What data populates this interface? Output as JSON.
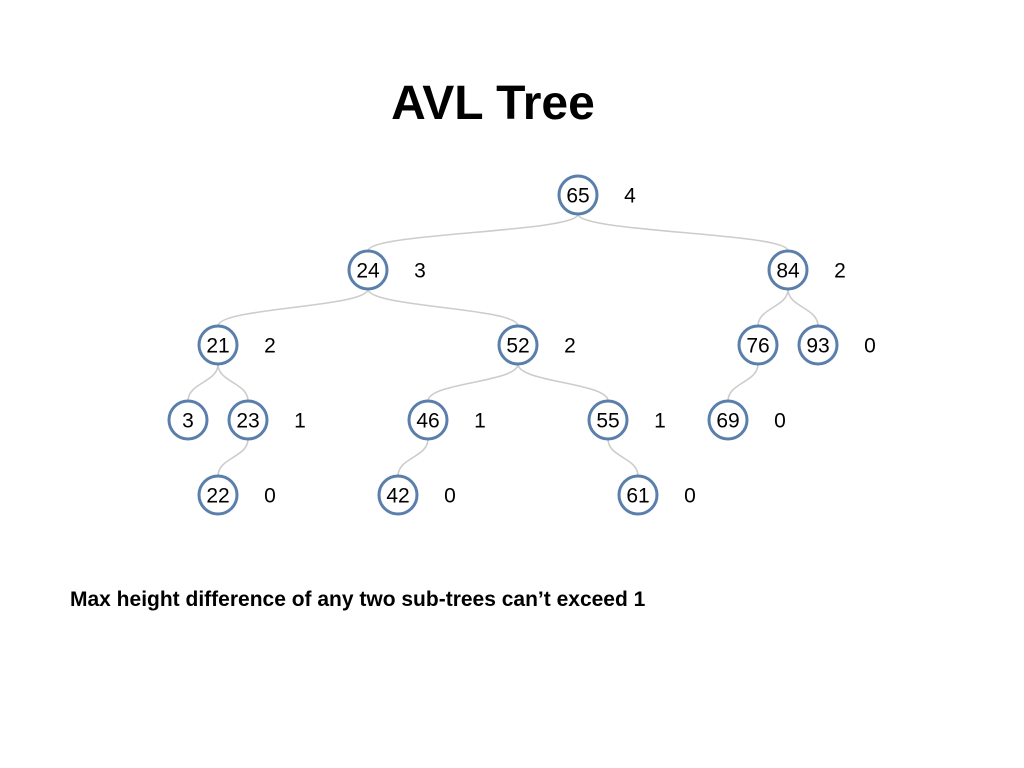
{
  "title": "AVL Tree",
  "caption": "Max height difference of any two sub-trees can’t exceed 1",
  "colors": {
    "node_stroke": "#5b7fab",
    "edge": "#cccccc",
    "text": "#000000"
  },
  "tree": {
    "nodes": [
      {
        "id": "n65",
        "value": "65",
        "height": "4"
      },
      {
        "id": "n24",
        "value": "24",
        "height": "3"
      },
      {
        "id": "n84",
        "value": "84",
        "height": "2"
      },
      {
        "id": "n21",
        "value": "21",
        "height": "2"
      },
      {
        "id": "n52",
        "value": "52",
        "height": "2"
      },
      {
        "id": "n76",
        "value": "76",
        "height": ""
      },
      {
        "id": "n93",
        "value": "93",
        "height": "0"
      },
      {
        "id": "n3",
        "value": "3",
        "height": ""
      },
      {
        "id": "n23",
        "value": "23",
        "height": "1"
      },
      {
        "id": "n46",
        "value": "46",
        "height": "1"
      },
      {
        "id": "n55",
        "value": "55",
        "height": "1"
      },
      {
        "id": "n69",
        "value": "69",
        "height": "0"
      },
      {
        "id": "n22",
        "value": "22",
        "height": "0"
      },
      {
        "id": "n42",
        "value": "42",
        "height": "0"
      },
      {
        "id": "n61",
        "value": "61",
        "height": "0"
      }
    ],
    "edges": [
      [
        "n65",
        "n24"
      ],
      [
        "n65",
        "n84"
      ],
      [
        "n24",
        "n21"
      ],
      [
        "n24",
        "n52"
      ],
      [
        "n84",
        "n76"
      ],
      [
        "n84",
        "n93"
      ],
      [
        "n21",
        "n3"
      ],
      [
        "n21",
        "n23"
      ],
      [
        "n52",
        "n46"
      ],
      [
        "n52",
        "n55"
      ],
      [
        "n76",
        "n69"
      ],
      [
        "n23",
        "n22"
      ],
      [
        "n46",
        "n42"
      ],
      [
        "n55",
        "n61"
      ]
    ]
  }
}
